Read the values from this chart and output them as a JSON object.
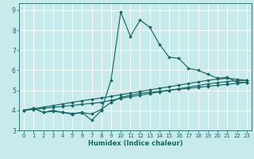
{
  "xlabel": "Humidex (Indice chaleur)",
  "bg_color": "#c8eaea",
  "line_color": "#1a6666",
  "grid_color": "#ffffff",
  "xlim": [
    -0.5,
    23.5
  ],
  "ylim": [
    3.0,
    9.35
  ],
  "yticks": [
    3,
    4,
    5,
    6,
    7,
    8,
    9
  ],
  "xticks": [
    0,
    1,
    2,
    3,
    4,
    5,
    6,
    7,
    8,
    9,
    10,
    11,
    12,
    13,
    14,
    15,
    16,
    17,
    18,
    19,
    20,
    21,
    22,
    23
  ],
  "series": [
    [
      4.0,
      4.1,
      3.9,
      4.0,
      3.9,
      3.8,
      3.9,
      3.5,
      4.0,
      5.5,
      8.9,
      7.7,
      8.5,
      8.15,
      7.3,
      6.65,
      6.6,
      6.1,
      6.0,
      5.8,
      5.6,
      5.65,
      5.4,
      5.4
    ],
    [
      4.0,
      4.1,
      3.9,
      3.95,
      3.9,
      3.85,
      3.88,
      3.82,
      4.05,
      4.4,
      4.65,
      4.75,
      4.85,
      4.9,
      4.95,
      5.0,
      5.05,
      5.1,
      5.15,
      5.2,
      5.25,
      5.3,
      5.35,
      5.4
    ],
    [
      4.0,
      4.05,
      4.1,
      4.15,
      4.2,
      4.25,
      4.3,
      4.35,
      4.4,
      4.5,
      4.6,
      4.68,
      4.76,
      4.84,
      4.92,
      5.0,
      5.08,
      5.16,
      5.24,
      5.32,
      5.38,
      5.44,
      5.48,
      5.5
    ],
    [
      4.0,
      4.08,
      4.16,
      4.24,
      4.32,
      4.4,
      4.48,
      4.55,
      4.62,
      4.7,
      4.78,
      4.86,
      4.94,
      5.02,
      5.1,
      5.18,
      5.26,
      5.34,
      5.42,
      5.5,
      5.56,
      5.6,
      5.55,
      5.5
    ]
  ]
}
